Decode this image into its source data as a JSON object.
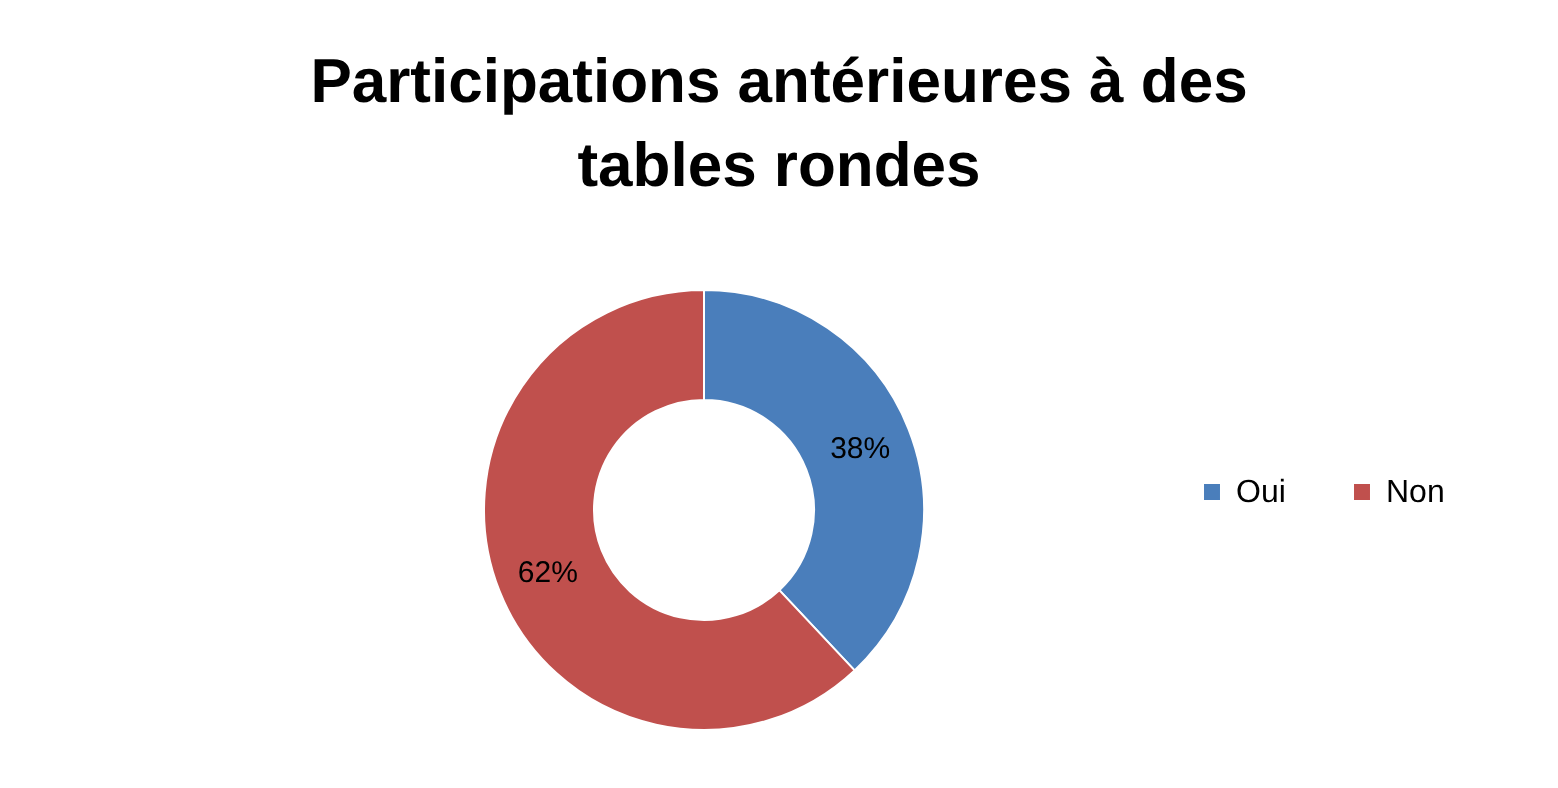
{
  "chart_data": {
    "type": "donut",
    "title": "Participations antérieures à des tables rondes",
    "categories": [
      "Oui",
      "Non"
    ],
    "values": [
      38,
      62
    ],
    "colors": [
      "#4a7ebb",
      "#c0504d"
    ],
    "value_labels": [
      "38%",
      "62%"
    ],
    "legend": "right"
  }
}
